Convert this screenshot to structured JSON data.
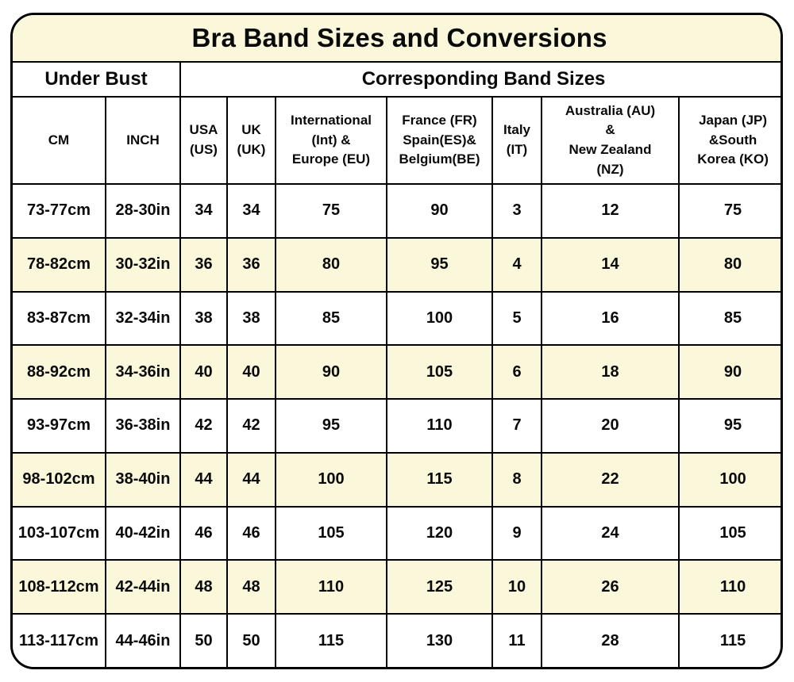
{
  "chart_data": {
    "type": "table",
    "title": "Bra Band Sizes and Conversions",
    "column_groups": [
      {
        "label": "Under Bust",
        "span": 2
      },
      {
        "label": "Corresponding Band Sizes",
        "span": 7
      }
    ],
    "columns": [
      "CM",
      "INCH",
      "USA (US)",
      "UK (UK)",
      "International (Int) & Europe (EU)",
      "France (FR) Spain(ES)& Belgium(BE)",
      "Italy (IT)",
      "Australia (AU) & New Zealand (NZ)",
      "Japan (JP) &South Korea (KO)"
    ],
    "rows": [
      [
        "73-77cm",
        "28-30in",
        "34",
        "34",
        "75",
        "90",
        "3",
        "12",
        "75"
      ],
      [
        "78-82cm",
        "30-32in",
        "36",
        "36",
        "80",
        "95",
        "4",
        "14",
        "80"
      ],
      [
        "83-87cm",
        "32-34in",
        "38",
        "38",
        "85",
        "100",
        "5",
        "16",
        "85"
      ],
      [
        "88-92cm",
        "34-36in",
        "40",
        "40",
        "90",
        "105",
        "6",
        "18",
        "90"
      ],
      [
        "93-97cm",
        "36-38in",
        "42",
        "42",
        "95",
        "110",
        "7",
        "20",
        "95"
      ],
      [
        "98-102cm",
        "38-40in",
        "44",
        "44",
        "100",
        "115",
        "8",
        "22",
        "100"
      ],
      [
        "103-107cm",
        "40-42in",
        "46",
        "46",
        "105",
        "120",
        "9",
        "24",
        "105"
      ],
      [
        "108-112cm",
        "42-44in",
        "48",
        "48",
        "110",
        "125",
        "10",
        "26",
        "110"
      ],
      [
        "113-117cm",
        "44-46in",
        "50",
        "50",
        "115",
        "130",
        "11",
        "28",
        "115"
      ]
    ],
    "highlighted_row_indices": [
      1,
      3,
      5,
      7
    ],
    "legend_position": "none",
    "grid": true
  },
  "display": {
    "column_labels": [
      "CM",
      "INCH",
      "USA\n(US)",
      "UK\n(UK)",
      "International\n(Int) &\nEurope (EU)",
      "France (FR)\nSpain(ES)&\nBelgium(BE)",
      "Italy\n(IT)",
      "Australia (AU)\n&\nNew Zealand\n(NZ)",
      "Japan (JP)\n&South\nKorea (KO)"
    ]
  },
  "colors": {
    "highlight_cream": "#faf7da",
    "border": "#000000",
    "background": "#ffffff",
    "text": "#0a0a0a"
  }
}
